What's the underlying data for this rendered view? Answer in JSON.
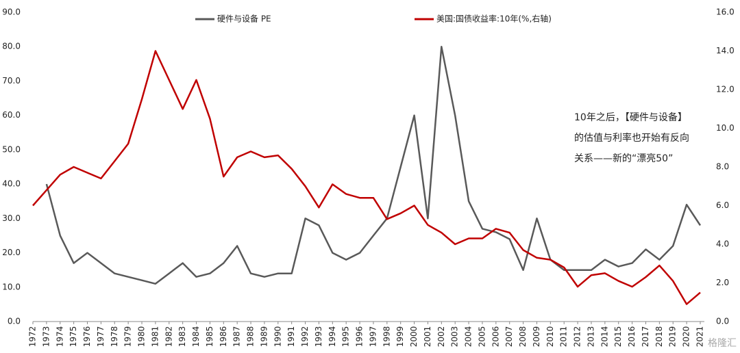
{
  "chart_data": {
    "type": "line",
    "categories": [
      "1972",
      "1973",
      "1974",
      "1975",
      "1976",
      "1977",
      "1978",
      "1979",
      "1980",
      "1981",
      "1982",
      "1983",
      "1984",
      "1985",
      "1986",
      "1987",
      "1988",
      "1989",
      "1990",
      "1991",
      "1992",
      "1993",
      "1994",
      "1995",
      "1996",
      "1997",
      "1998",
      "1999",
      "2000",
      "2001",
      "2002",
      "2003",
      "2004",
      "2005",
      "2006",
      "2007",
      "2008",
      "2009",
      "2010",
      "2011",
      "2012",
      "2013",
      "2014",
      "2015",
      "2016",
      "2017",
      "2018",
      "2019",
      "2020",
      "2021"
    ],
    "series": [
      {
        "name": "硬件与设备 PE",
        "color": "#595959",
        "values": [
          null,
          40,
          25,
          17,
          20,
          17,
          14,
          13,
          12,
          11,
          14,
          17,
          13,
          14,
          17,
          22,
          14,
          13,
          14,
          14,
          30,
          28,
          20,
          18,
          20,
          25,
          30,
          45,
          60,
          30,
          80,
          60,
          35,
          27,
          26,
          24,
          15,
          30,
          18,
          15,
          15,
          15,
          18,
          16,
          17,
          21,
          18,
          22,
          34,
          28
        ]
      },
      {
        "name": "美国:国债收益率:10年(%,右轴)",
        "color": "#c00000",
        "axis": "y2",
        "values": [
          6.0,
          6.8,
          7.6,
          8.0,
          7.7,
          7.4,
          8.3,
          9.2,
          11.5,
          14.0,
          12.5,
          11.0,
          12.5,
          10.5,
          7.5,
          8.5,
          8.8,
          8.5,
          8.6,
          7.9,
          7.0,
          5.9,
          7.1,
          6.6,
          6.4,
          6.4,
          5.3,
          5.6,
          6.0,
          5.0,
          4.6,
          4.0,
          4.3,
          4.3,
          4.8,
          4.6,
          3.7,
          3.3,
          3.2,
          2.8,
          1.8,
          2.4,
          2.5,
          2.1,
          1.8,
          2.3,
          2.9,
          2.1,
          0.9,
          1.5
        ]
      }
    ],
    "ylim": [
      0,
      90
    ],
    "yticks": [
      {
        "value": 0,
        "label": "0.0"
      },
      {
        "value": 10,
        "label": "10.0"
      },
      {
        "value": 20,
        "label": "20.0"
      },
      {
        "value": 30,
        "label": "30.0"
      },
      {
        "value": 40,
        "label": "40.0"
      },
      {
        "value": 50,
        "label": "50.0"
      },
      {
        "value": 60,
        "label": "60.0"
      },
      {
        "value": 70,
        "label": "70.0"
      },
      {
        "value": 80,
        "label": "80.0"
      },
      {
        "value": 90,
        "label": "90.0"
      }
    ],
    "y2lim": [
      0,
      16
    ],
    "y2ticks": [
      {
        "value": 0,
        "label": "0.0"
      },
      {
        "value": 2,
        "label": "2.0"
      },
      {
        "value": 4,
        "label": "4.0"
      },
      {
        "value": 6,
        "label": "6.0"
      },
      {
        "value": 8,
        "label": "8.0"
      },
      {
        "value": 10,
        "label": "10.0"
      },
      {
        "value": 12,
        "label": "12.0"
      },
      {
        "value": 14,
        "label": "14.0"
      },
      {
        "value": 16,
        "label": "16.0"
      }
    ],
    "annotation": [
      "10年之后，【硬件与设备】",
      "的估值与利率也开始有反向",
      "关系——新的“漂亮50”"
    ],
    "watermark": "格隆汇",
    "legend": "top"
  }
}
